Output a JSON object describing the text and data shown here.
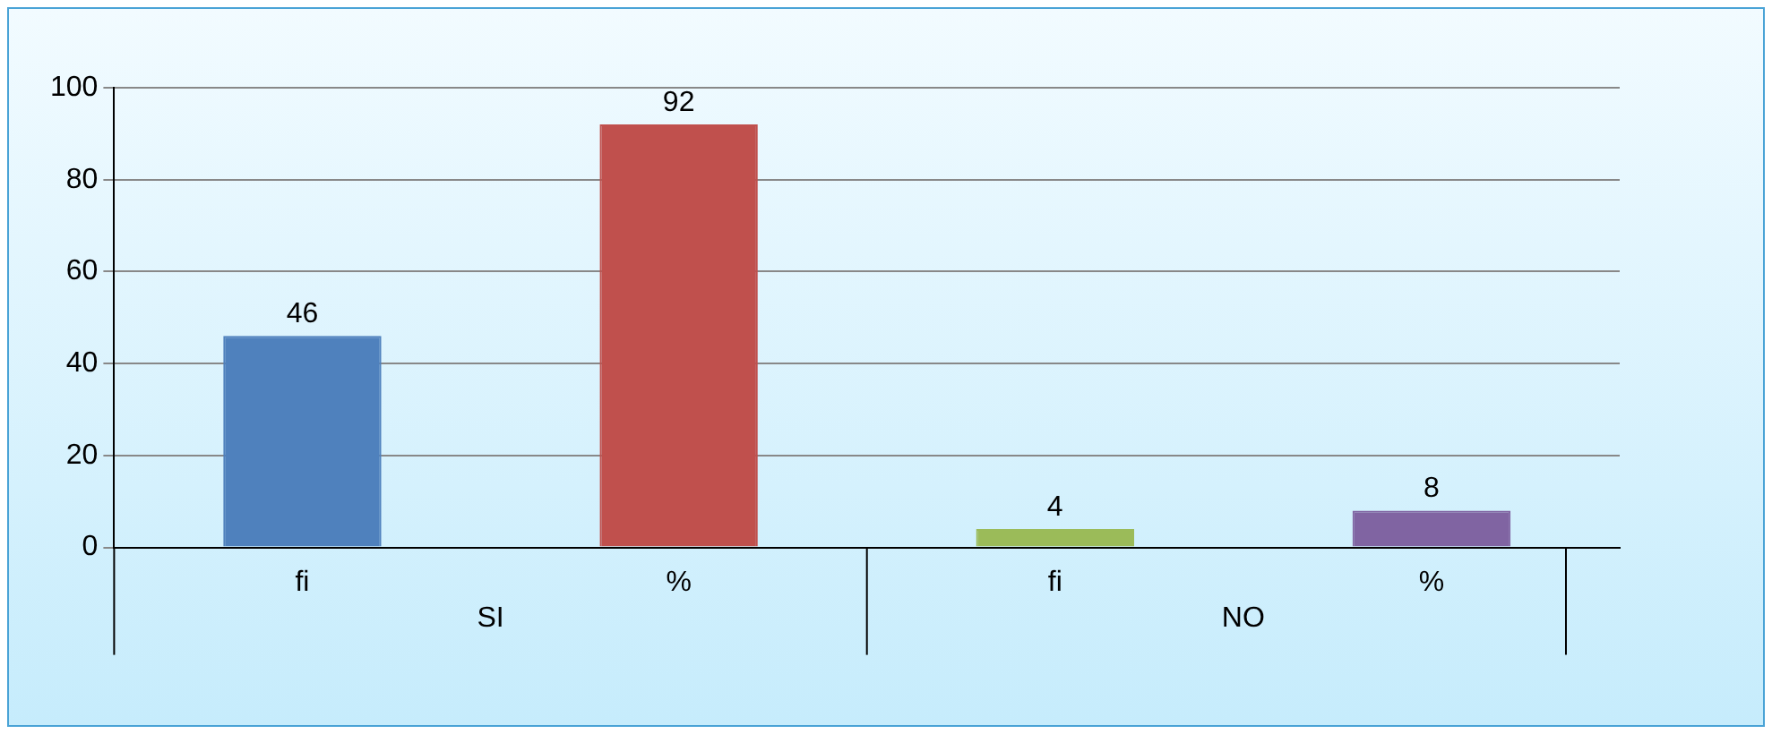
{
  "chart_data": {
    "type": "bar",
    "categories": [
      "fi",
      "%",
      "fi",
      "%"
    ],
    "values": [
      46,
      92,
      4,
      8
    ],
    "colors": [
      "#4f81bd",
      "#c0504d",
      "#9bbb59",
      "#8064a2"
    ],
    "ylim": [
      0,
      100
    ],
    "yticks": [
      0,
      20,
      40,
      60,
      80,
      100
    ],
    "grid": "y",
    "data_labels": true,
    "annotations": [
      "SI",
      "NO"
    ]
  }
}
